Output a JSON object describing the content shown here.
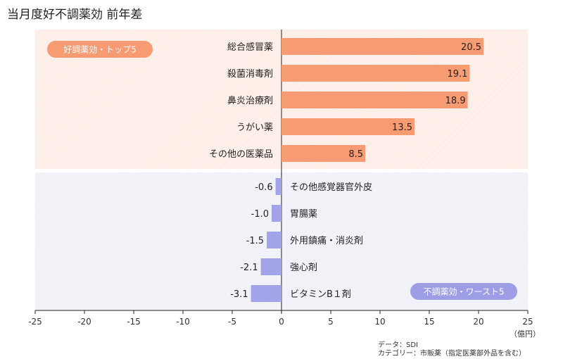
{
  "chart_data": {
    "type": "bar",
    "orientation": "horizontal",
    "title": "当月度好不調薬効 前年差",
    "unit_label": "（億円）",
    "xlim": [
      -25,
      25
    ],
    "x_ticks": [
      -25,
      -20,
      -15,
      -10,
      -5,
      0,
      5,
      10,
      15,
      20,
      25
    ],
    "groups": [
      {
        "label": "好調薬効・トップ5",
        "color": "#f79b72",
        "background": "#fdf0ea",
        "badge_color": "#f79b72",
        "items": [
          {
            "category": "総合感冒薬",
            "value": 20.5,
            "value_label": "20.5"
          },
          {
            "category": "殺菌消毒剤",
            "value": 19.1,
            "value_label": "19.1"
          },
          {
            "category": "鼻炎治療剤",
            "value": 18.9,
            "value_label": "18.9"
          },
          {
            "category": "うがい薬",
            "value": 13.5,
            "value_label": "13.5"
          },
          {
            "category": "その他の医薬品",
            "value": 8.5,
            "value_label": "8.5"
          }
        ]
      },
      {
        "label": "不調薬効・ワースト5",
        "color": "#a3a3ea",
        "background": "#f2f3f9",
        "badge_color": "#9e9ee6",
        "items": [
          {
            "category": "その他感覚器官外皮",
            "value": -0.6,
            "value_label": "-0.6"
          },
          {
            "category": "胃腸薬",
            "value": -1.0,
            "value_label": "-1.0"
          },
          {
            "category": "外用鎮痛・消炎剤",
            "value": -1.5,
            "value_label": "-1.5"
          },
          {
            "category": "強心剤",
            "value": -2.1,
            "value_label": "-2.1"
          },
          {
            "category": "ビタミンB１剤",
            "value": -3.1,
            "value_label": "-3.1"
          }
        ]
      }
    ],
    "source": {
      "data_line": "データ：SDI",
      "category_line": "カテゴリー：市販薬（指定医薬部外品を含む）"
    }
  }
}
